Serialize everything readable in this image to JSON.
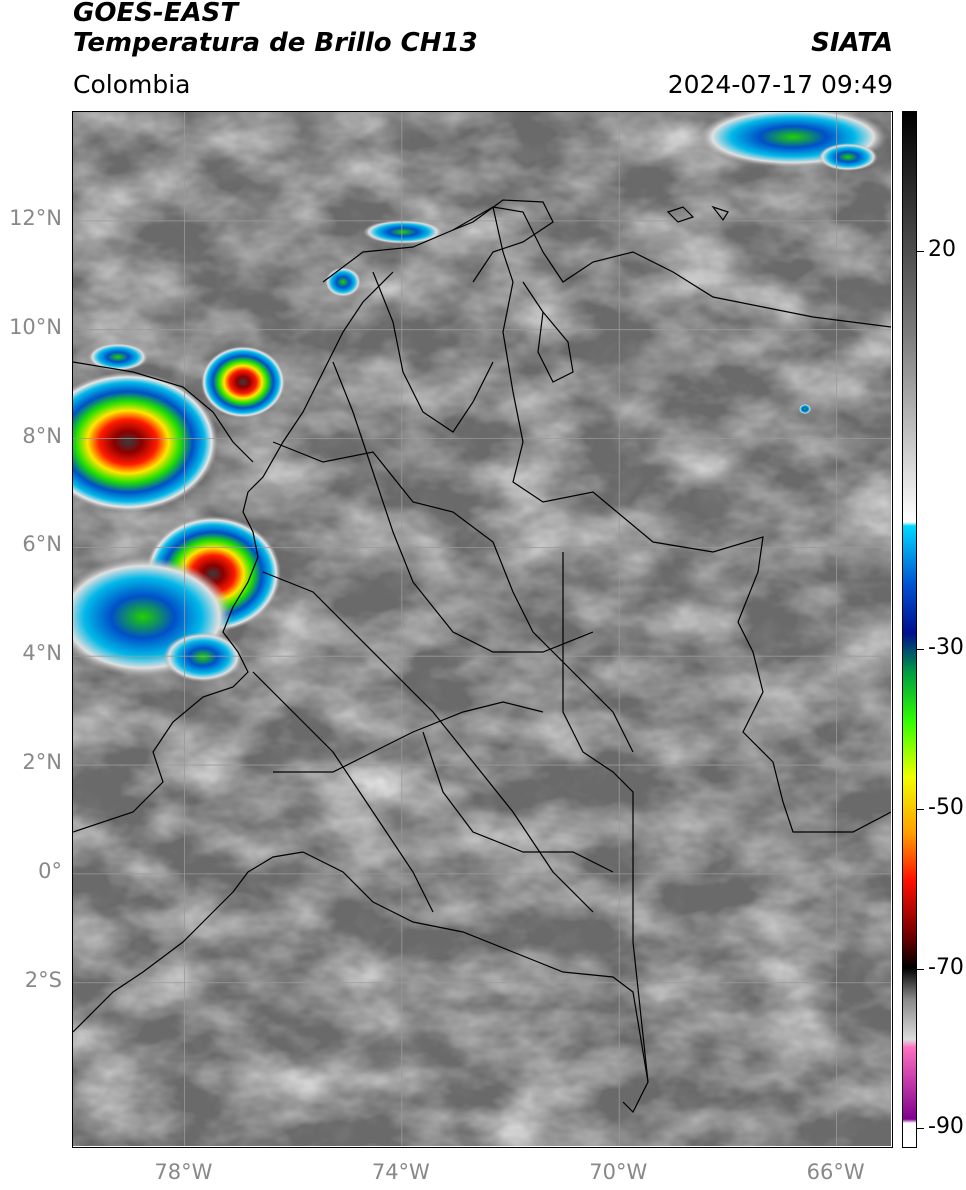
{
  "header": {
    "satellite": "GOES-EAST",
    "product": "Temperatura de Brillo CH13",
    "organization": "SIATA",
    "region": "Colombia",
    "datetime": "2024-07-17 09:49"
  },
  "map": {
    "lat_labels": [
      {
        "text": "12°N",
        "lat": 12
      },
      {
        "text": "10°N",
        "lat": 10
      },
      {
        "text": "8°N",
        "lat": 8
      },
      {
        "text": "6°N",
        "lat": 6
      },
      {
        "text": "4°N",
        "lat": 4
      },
      {
        "text": "2°N",
        "lat": 2
      },
      {
        "text": "0°",
        "lat": 0
      },
      {
        "text": "2°S",
        "lat": -2
      }
    ],
    "lon_labels": [
      {
        "text": "78°W",
        "lon": -78
      },
      {
        "text": "74°W",
        "lon": -74
      },
      {
        "text": "70°W",
        "lon": -70
      },
      {
        "text": "66°W",
        "lon": -66
      }
    ],
    "lon_range": [
      -80.05,
      -65.0
    ],
    "lat_range": [
      -5.0,
      14.0
    ],
    "background_color": "#6c6c6c",
    "storm_colors": [
      "#8a8a8a",
      "#d8d8d8",
      "#00b0e0",
      "#0040c0",
      "#00d000",
      "#f0f000",
      "#ff0000",
      "#a00000",
      "#404040"
    ]
  },
  "colorbar": {
    "labels": [
      {
        "text": "20",
        "value": 20
      },
      {
        "text": "-30",
        "value": -30
      },
      {
        "text": "-50",
        "value": -50
      },
      {
        "text": "-70",
        "value": -70
      },
      {
        "text": "-90",
        "value": -90
      }
    ],
    "range": [
      -92.5,
      37.5
    ],
    "stops": [
      {
        "v": 37.5,
        "c": "#000000"
      },
      {
        "v": 10,
        "c": "#7a7a7a"
      },
      {
        "v": -14,
        "c": "#ffffff"
      },
      {
        "v": -14.5,
        "c": "#00d8ff"
      },
      {
        "v": -22,
        "c": "#0050d0"
      },
      {
        "v": -28,
        "c": "#001090"
      },
      {
        "v": -33,
        "c": "#00a040"
      },
      {
        "v": -39,
        "c": "#30ff00"
      },
      {
        "v": -46,
        "c": "#f0ff00"
      },
      {
        "v": -53,
        "c": "#ffa000"
      },
      {
        "v": -59,
        "c": "#ff1000"
      },
      {
        "v": -66,
        "c": "#700000"
      },
      {
        "v": -70,
        "c": "#000000"
      },
      {
        "v": -74,
        "c": "#8a8a8a"
      },
      {
        "v": -79,
        "c": "#dddddd"
      },
      {
        "v": -80,
        "c": "#ff70c0"
      },
      {
        "v": -89,
        "c": "#800090"
      },
      {
        "v": -89.5,
        "c": "#ffffff"
      },
      {
        "v": -92.5,
        "c": "#ffffff"
      }
    ]
  }
}
